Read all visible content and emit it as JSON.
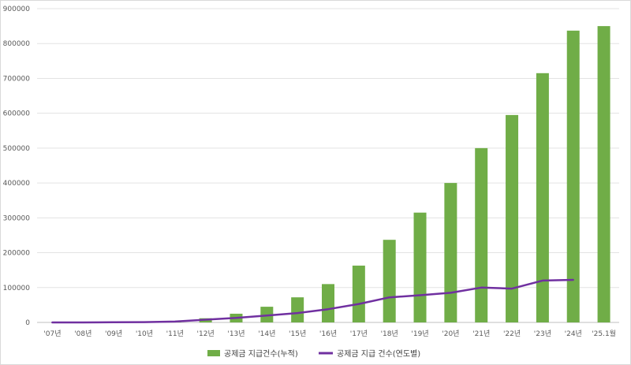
{
  "chart_data": {
    "type": "bar",
    "title": "",
    "xlabel": "",
    "ylabel": "",
    "ylim": [
      0,
      900000
    ],
    "yticks": [
      0,
      100000,
      200000,
      300000,
      400000,
      500000,
      600000,
      700000,
      800000,
      900000
    ],
    "ytick_labels": [
      "0",
      "100000",
      "200000",
      "300000",
      "400000",
      "500000",
      "600000",
      "700000",
      "800000",
      "900000"
    ],
    "grid": true,
    "legend_position": "bottom",
    "categories": [
      "'07년",
      "'08년",
      "'09년",
      "'10년",
      "'11년",
      "'12년",
      "'13년",
      "'14년",
      "'15년",
      "'16년",
      "'17년",
      "'18년",
      "'19년",
      "'20년",
      "'21년",
      "'22년",
      "'23년",
      "'24년",
      "'25.1월"
    ],
    "series": [
      {
        "name": "공제금 지급건수(누적)",
        "type": "bar",
        "color": "#70ad47",
        "values": [
          0,
          0,
          500,
          1500,
          4000,
          12000,
          25000,
          45000,
          72000,
          110000,
          163000,
          237000,
          315000,
          400000,
          500000,
          595000,
          715000,
          837000,
          850000
        ]
      },
      {
        "name": "공제금 지급 건수(연도별)",
        "type": "line",
        "color": "#7030a0",
        "values": [
          0,
          0,
          500,
          1000,
          2500,
          8000,
          13000,
          20000,
          27000,
          38000,
          53000,
          72000,
          78000,
          85000,
          100000,
          97000,
          120000,
          122000,
          null
        ]
      }
    ]
  }
}
